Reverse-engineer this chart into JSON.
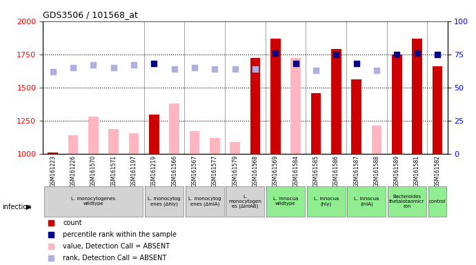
{
  "title": "GDS3506 / 101568_at",
  "samples": [
    "GSM161223",
    "GSM161226",
    "GSM161570",
    "GSM161571",
    "GSM161197",
    "GSM161219",
    "GSM161566",
    "GSM161567",
    "GSM161577",
    "GSM161579",
    "GSM161568",
    "GSM161569",
    "GSM161584",
    "GSM161585",
    "GSM161586",
    "GSM161587",
    "GSM161588",
    "GSM161589",
    "GSM161581",
    "GSM161582"
  ],
  "count_values": [
    1010,
    1140,
    1280,
    1185,
    1155,
    1295,
    1380,
    1170,
    1120,
    1085,
    1720,
    1870,
    1720,
    1455,
    1790,
    1560,
    1210,
    1750,
    1870,
    1660
  ],
  "count_absent": [
    false,
    true,
    true,
    true,
    true,
    false,
    true,
    true,
    true,
    true,
    false,
    false,
    true,
    false,
    false,
    false,
    true,
    false,
    false,
    false
  ],
  "percentile_values": [
    62,
    65,
    67,
    65,
    67,
    68,
    64,
    65,
    64,
    64,
    64,
    76,
    68,
    63,
    75,
    68,
    63,
    75,
    76,
    75
  ],
  "percentile_absent": [
    true,
    true,
    true,
    true,
    true,
    false,
    true,
    true,
    true,
    true,
    true,
    false,
    false,
    true,
    false,
    false,
    true,
    false,
    false,
    false
  ],
  "groups": [
    {
      "label": "L. monocytogenes\nwildtype",
      "start": 0,
      "end": 5,
      "color": "#d3d3d3"
    },
    {
      "label": "L. monocytog\nenes (Δhly)",
      "start": 5,
      "end": 7,
      "color": "#d3d3d3"
    },
    {
      "label": "L. monocytog\nenes (ΔinlA)",
      "start": 7,
      "end": 9,
      "color": "#d3d3d3"
    },
    {
      "label": "L.\nmonocytogen\nes (ΔinlAB)",
      "start": 9,
      "end": 11,
      "color": "#d3d3d3"
    },
    {
      "label": "L. innocua\nwildtype",
      "start": 11,
      "end": 13,
      "color": "#90ee90"
    },
    {
      "label": "L. innocua\n(hly)",
      "start": 13,
      "end": 15,
      "color": "#90ee90"
    },
    {
      "label": "L. innocua\n(inlA)",
      "start": 15,
      "end": 17,
      "color": "#90ee90"
    },
    {
      "label": "Bacteroides\nthetaiotaomicr\nron",
      "start": 17,
      "end": 19,
      "color": "#90ee90"
    },
    {
      "label": "control",
      "start": 19,
      "end": 20,
      "color": "#90ee90"
    }
  ],
  "ylim_left": [
    1000,
    2000
  ],
  "ylim_right": [
    0,
    100
  ],
  "yticks_left": [
    1000,
    1250,
    1500,
    1750,
    2000
  ],
  "yticks_right": [
    0,
    25,
    50,
    75,
    100
  ],
  "count_color_present": "#cc0000",
  "count_color_absent": "#ffb6c1",
  "percentile_color_present": "#00008b",
  "percentile_color_absent": "#b0b0e0",
  "legend": [
    {
      "label": "count",
      "color": "#cc0000",
      "marker": "s"
    },
    {
      "label": "percentile rank within the sample",
      "color": "#00008b",
      "marker": "s"
    },
    {
      "label": "value, Detection Call = ABSENT",
      "color": "#ffb6c1",
      "marker": "s"
    },
    {
      "label": "rank, Detection Call = ABSENT",
      "color": "#b0b0e0",
      "marker": "s"
    }
  ]
}
